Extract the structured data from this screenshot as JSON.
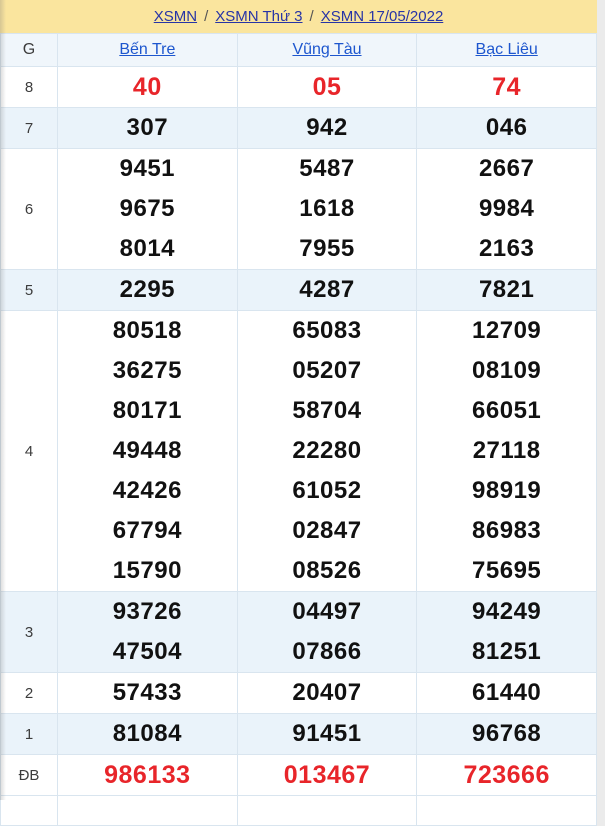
{
  "colors": {
    "yellow": "#fae59e",
    "stripe": "#eaf3fa",
    "headerbg": "#f0f6fb",
    "border": "#d9e5ef",
    "red": "#e8252a",
    "navy": "#2734a6",
    "blue": "#1d56ce",
    "text": "#3a3a3a",
    "gutter": "#ebebeb"
  },
  "breadcrumb": {
    "separator": "/",
    "items": [
      {
        "label": "XSMN"
      },
      {
        "label": "XSMN Thứ 3"
      },
      {
        "label": "XSMN 17/05/2022"
      }
    ]
  },
  "table": {
    "corner_label": "G",
    "provinces": [
      "Bến Tre",
      "Vũng Tàu",
      "Bạc Liêu"
    ],
    "rows": [
      {
        "label": "8",
        "red": true,
        "striped": false,
        "cells": [
          [
            "40"
          ],
          [
            "05"
          ],
          [
            "74"
          ]
        ]
      },
      {
        "label": "7",
        "red": false,
        "striped": true,
        "cells": [
          [
            "307"
          ],
          [
            "942"
          ],
          [
            "046"
          ]
        ]
      },
      {
        "label": "6",
        "red": false,
        "striped": false,
        "cells": [
          [
            "9451",
            "9675",
            "8014"
          ],
          [
            "5487",
            "1618",
            "7955"
          ],
          [
            "2667",
            "9984",
            "2163"
          ]
        ]
      },
      {
        "label": "5",
        "red": false,
        "striped": true,
        "cells": [
          [
            "2295"
          ],
          [
            "4287"
          ],
          [
            "7821"
          ]
        ]
      },
      {
        "label": "4",
        "red": false,
        "striped": false,
        "cells": [
          [
            "80518",
            "36275",
            "80171",
            "49448",
            "42426",
            "67794",
            "15790"
          ],
          [
            "65083",
            "05207",
            "58704",
            "22280",
            "61052",
            "02847",
            "08526"
          ],
          [
            "12709",
            "08109",
            "66051",
            "27118",
            "98919",
            "86983",
            "75695"
          ]
        ]
      },
      {
        "label": "3",
        "red": false,
        "striped": true,
        "cells": [
          [
            "93726",
            "47504"
          ],
          [
            "04497",
            "07866"
          ],
          [
            "94249",
            "81251"
          ]
        ]
      },
      {
        "label": "2",
        "red": false,
        "striped": false,
        "cells": [
          [
            "57433"
          ],
          [
            "20407"
          ],
          [
            "61440"
          ]
        ]
      },
      {
        "label": "1",
        "red": false,
        "striped": true,
        "cells": [
          [
            "81084"
          ],
          [
            "91451"
          ],
          [
            "96768"
          ]
        ]
      },
      {
        "label": "ĐB",
        "red": true,
        "striped": false,
        "cells": [
          [
            "986133"
          ],
          [
            "013467"
          ],
          [
            "723666"
          ]
        ]
      }
    ]
  }
}
